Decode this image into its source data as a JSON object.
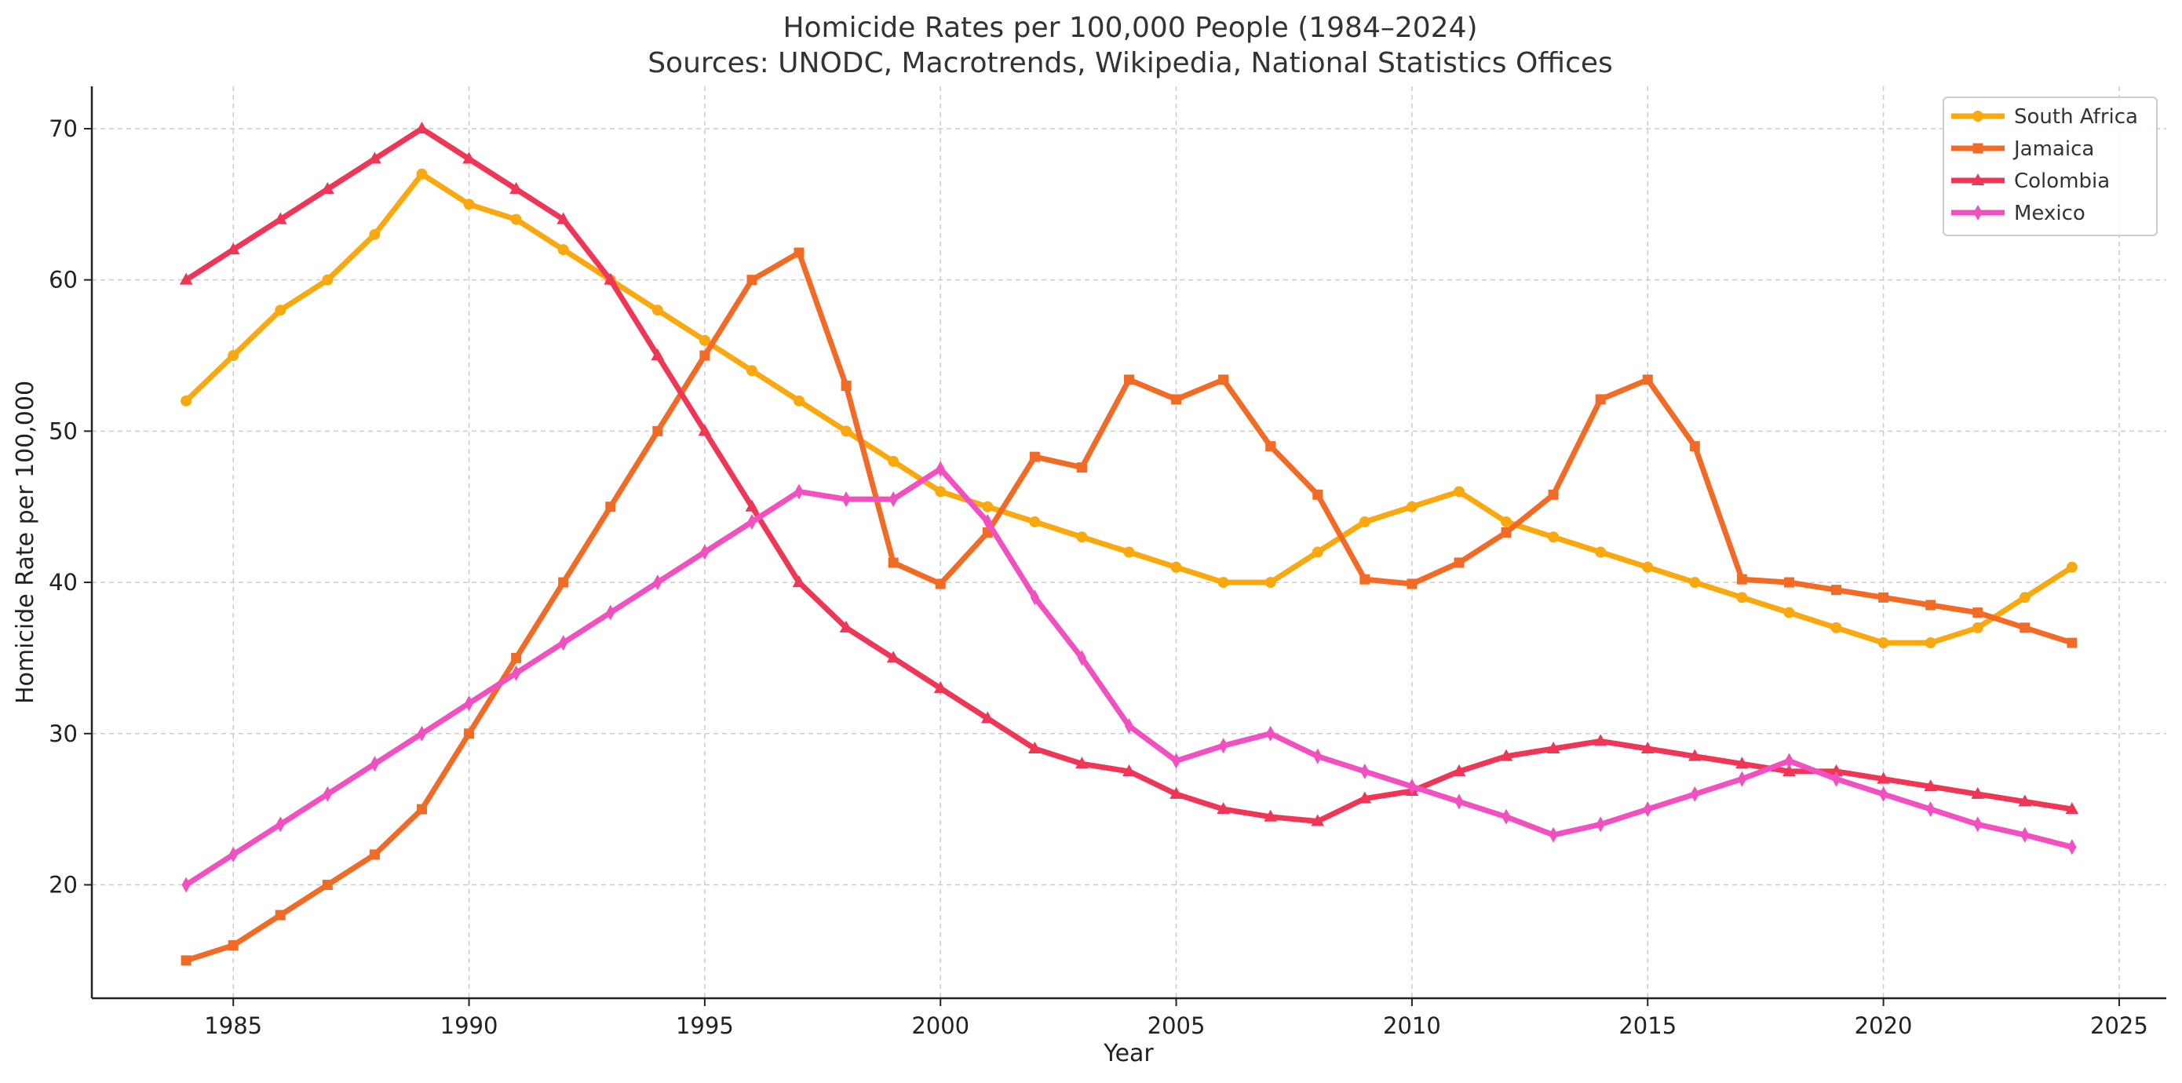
{
  "chart_data": {
    "type": "line",
    "title": "Homicide Rates per 100,000 People (1984–2024)",
    "subtitle": "Sources: UNODC, Macrotrends, Wikipedia, National Statistics Offices",
    "xlabel": "Year",
    "ylabel": "Homicide Rate per 100,000",
    "xlim": [
      1982,
      2026
    ],
    "ylim": [
      12.5,
      72.8
    ],
    "xticks": [
      1985,
      1990,
      1995,
      2000,
      2005,
      2010,
      2015,
      2020,
      2025
    ],
    "yticks": [
      20,
      30,
      40,
      50,
      60,
      70
    ],
    "grid": true,
    "legend_position": "top-right",
    "x": [
      1984,
      1985,
      1986,
      1987,
      1988,
      1989,
      1990,
      1991,
      1992,
      1993,
      1994,
      1995,
      1996,
      1997,
      1998,
      1999,
      2000,
      2001,
      2002,
      2003,
      2004,
      2005,
      2006,
      2007,
      2008,
      2009,
      2010,
      2011,
      2012,
      2013,
      2014,
      2015,
      2016,
      2017,
      2018,
      2019,
      2020,
      2021,
      2022,
      2023,
      2024
    ],
    "series": [
      {
        "name": "South Africa",
        "color": "#F9A80F",
        "marker": "circle",
        "values": [
          52,
          55,
          58,
          60,
          63,
          67,
          65,
          64,
          62,
          60,
          58,
          56,
          54,
          52,
          50,
          48,
          46,
          45,
          44,
          43,
          42,
          41,
          40,
          40,
          42,
          44,
          45,
          46,
          44,
          43,
          42,
          41,
          40,
          39,
          38,
          37,
          36,
          36,
          37,
          39,
          41
        ]
      },
      {
        "name": "Jamaica",
        "color": "#F26B26",
        "marker": "square",
        "values": [
          15,
          16,
          18,
          20,
          22,
          25,
          30,
          35,
          40,
          45,
          50,
          55,
          60,
          61.8,
          53,
          41.3,
          39.9,
          43.3,
          48.3,
          47.6,
          53.4,
          52.1,
          53.4,
          49,
          45.8,
          40.2,
          39.9,
          41.3,
          43.3,
          45.8,
          52.1,
          53.4,
          49,
          40.2,
          40,
          39.5,
          39,
          38.5,
          38,
          37,
          36
        ]
      },
      {
        "name": "Colombia",
        "color": "#EE3757",
        "marker": "triangle",
        "values": [
          60,
          62,
          64,
          66,
          68,
          70,
          68,
          66,
          64,
          60,
          55,
          50,
          45,
          40,
          37,
          35,
          33,
          31,
          29,
          28,
          27.5,
          26,
          25,
          24.5,
          24.2,
          25.7,
          26.2,
          27.5,
          28.5,
          29,
          29.5,
          29,
          28.5,
          28,
          27.5,
          27.5,
          27,
          26.5,
          26,
          25.5,
          25
        ]
      },
      {
        "name": "Mexico",
        "color": "#F150C0",
        "marker": "diamond",
        "values": [
          20,
          22,
          24,
          26,
          28,
          30,
          32,
          34,
          36,
          38,
          40,
          42,
          44,
          46,
          45.5,
          45.5,
          47.5,
          44,
          39,
          35,
          30.5,
          28.2,
          29.2,
          30,
          28.5,
          27.5,
          26.5,
          25.5,
          24.5,
          23.3,
          24,
          25,
          26,
          27,
          28.2,
          27,
          26,
          25,
          24,
          23.3,
          22.5
        ]
      }
    ]
  }
}
